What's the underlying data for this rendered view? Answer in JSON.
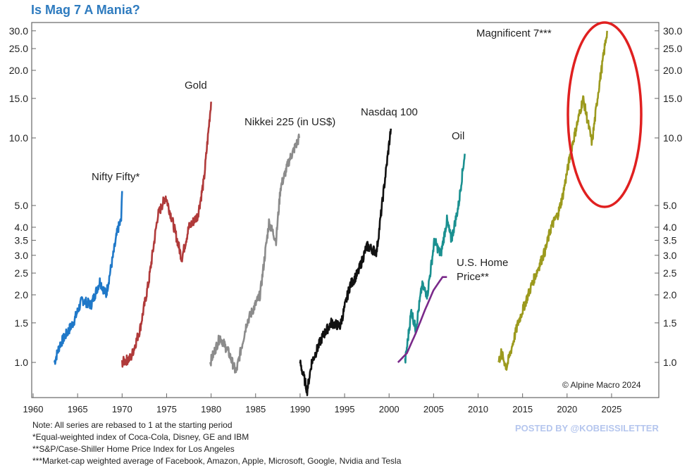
{
  "title": "Is Mag 7 A Mania?",
  "chart_data": {
    "type": "line",
    "title": "Is Mag 7 A Mania?",
    "y_scale": "log",
    "ylim": [
      0.75,
      32
    ],
    "xlim": [
      1960,
      2029
    ],
    "x_ticks": [
      1960,
      1965,
      1970,
      1975,
      1980,
      1985,
      1990,
      1995,
      2000,
      2005,
      2010,
      2015,
      2020,
      2025
    ],
    "y_ticks": [
      "1.0",
      "1.5",
      "2.0",
      "2.5",
      "3.0",
      "3.5",
      "4.0",
      "5.0",
      "10.0",
      "15.0",
      "20.0",
      "25.0",
      "30.0"
    ],
    "grid": false,
    "series": [
      {
        "name": "Nifty Fifty*",
        "color": "#1f78c8",
        "points": [
          [
            1962.4,
            1.0
          ],
          [
            1963,
            1.2
          ],
          [
            1964.5,
            1.5
          ],
          [
            1965.5,
            1.9
          ],
          [
            1966.5,
            1.8
          ],
          [
            1967.5,
            2.3
          ],
          [
            1968.2,
            2.0
          ],
          [
            1969,
            3.0
          ],
          [
            1969.5,
            3.9
          ],
          [
            1969.9,
            4.3
          ],
          [
            1970,
            5.8
          ]
        ]
      },
      {
        "name": "Gold",
        "color": "#b03a3a",
        "points": [
          [
            1970,
            1.0
          ],
          [
            1971,
            1.05
          ],
          [
            1972,
            1.4
          ],
          [
            1973,
            2.3
          ],
          [
            1974,
            4.5
          ],
          [
            1974.9,
            5.5
          ],
          [
            1975.7,
            4.2
          ],
          [
            1976.7,
            2.9
          ],
          [
            1977.5,
            4.0
          ],
          [
            1978.5,
            4.5
          ],
          [
            1979.2,
            6.5
          ],
          [
            1980,
            14.5
          ]
        ]
      },
      {
        "name": "Nikkei 225 (in US$)",
        "color": "#8c8c8c",
        "points": [
          [
            1979.9,
            1.0
          ],
          [
            1981,
            1.3
          ],
          [
            1982,
            1.1
          ],
          [
            1982.8,
            0.9
          ],
          [
            1984,
            1.5
          ],
          [
            1985.5,
            2.0
          ],
          [
            1986.5,
            4.2
          ],
          [
            1987.3,
            3.5
          ],
          [
            1987.8,
            6.0
          ],
          [
            1988.8,
            8.0
          ],
          [
            1989.9,
            10.0
          ]
        ]
      },
      {
        "name": "Nasdaq 100",
        "color": "#111111",
        "points": [
          [
            1990,
            1.0
          ],
          [
            1990.8,
            0.75
          ],
          [
            1991.3,
            1.0
          ],
          [
            1992.5,
            1.3
          ],
          [
            1993.5,
            1.5
          ],
          [
            1994.5,
            1.45
          ],
          [
            1995.6,
            2.2
          ],
          [
            1996.5,
            2.5
          ],
          [
            1997.5,
            3.3
          ],
          [
            1998.6,
            3.1
          ],
          [
            1999.2,
            5.0
          ],
          [
            2000.2,
            11.0
          ]
        ]
      },
      {
        "name": "Oil",
        "color": "#1a9090",
        "points": [
          [
            2001.8,
            1.0
          ],
          [
            2002.5,
            1.7
          ],
          [
            2003,
            1.4
          ],
          [
            2003.7,
            2.2
          ],
          [
            2004.3,
            2.0
          ],
          [
            2005.1,
            3.5
          ],
          [
            2005.8,
            3.0
          ],
          [
            2006.5,
            4.3
          ],
          [
            2007,
            3.5
          ],
          [
            2007.8,
            5.0
          ],
          [
            2008.5,
            8.5
          ]
        ]
      },
      {
        "name": "U.S. Home Price**",
        "color": "#7a2a8a",
        "points": [
          [
            2001,
            1.0
          ],
          [
            2002,
            1.1
          ],
          [
            2003,
            1.35
          ],
          [
            2004,
            1.7
          ],
          [
            2005,
            2.1
          ],
          [
            2006,
            2.4
          ],
          [
            2006.5,
            2.4
          ]
        ]
      },
      {
        "name": "Magnificent 7***",
        "color": "#9c9a1e",
        "points": [
          [
            2012.3,
            1.0
          ],
          [
            2012.6,
            1.1
          ],
          [
            2013.2,
            0.95
          ],
          [
            2014.5,
            1.5
          ],
          [
            2016,
            2.2
          ],
          [
            2017.6,
            3.2
          ],
          [
            2018.2,
            4.0
          ],
          [
            2019,
            4.6
          ],
          [
            2019.5,
            5.5
          ],
          [
            2020.5,
            9.0
          ],
          [
            2021.8,
            15.0
          ],
          [
            2022.8,
            9.5
          ],
          [
            2023.5,
            16.0
          ],
          [
            2024.5,
            30.0
          ]
        ]
      }
    ],
    "annotations": [
      "© Alpine Macro 2024"
    ],
    "highlight_color": "#e02020"
  },
  "notes": [
    "Note: All series are rebased to 1 at the starting period",
    "*Equal-weighted index of Coca-Cola, Disney, GE and IBM",
    "**S&P/Case-Shiller Home Price Index for Los Angeles",
    "***Market-cap weighted average of Facebook, Amazon, Apple, Microsoft, Google, Nvidia and Tesla"
  ],
  "watermark": "POSTED BY @KOBEISSILETTER"
}
